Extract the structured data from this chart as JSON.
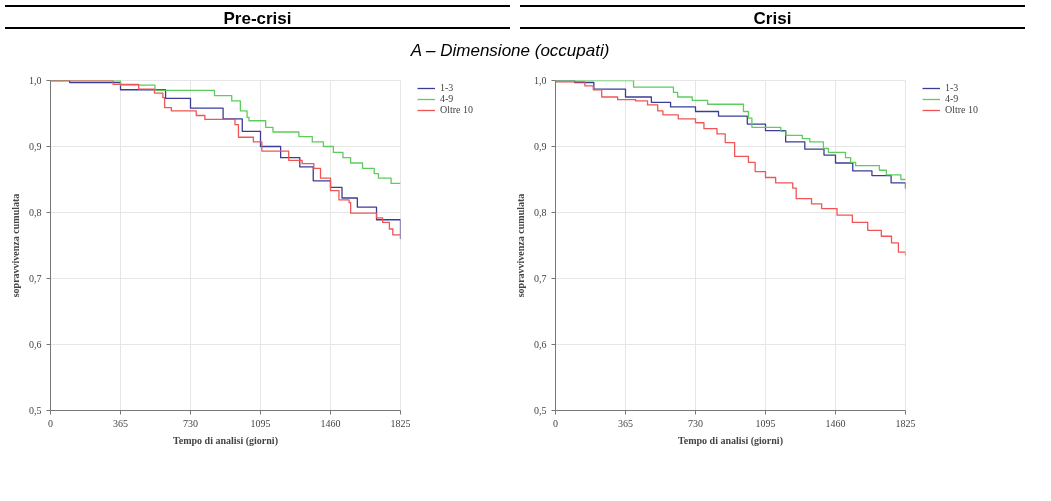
{
  "chart_data": [
    {
      "type": "step",
      "title": "Pre-crisi",
      "subtitle": "A – Dimensione (occupati)",
      "xlabel": "Tempo di analisi (giorni)",
      "ylabel": "sopravvivenza cumulata",
      "xlim": [
        0,
        1825
      ],
      "xticks": [
        0,
        365,
        730,
        1095,
        1460,
        1825
      ],
      "ylim": [
        0.5,
        1.0
      ],
      "yticks": [
        {
          "value": 0.5,
          "label": "0,5"
        },
        {
          "value": 0.6,
          "label": "0,6"
        },
        {
          "value": 0.7,
          "label": "0,7"
        },
        {
          "value": 0.8,
          "label": "0,8"
        },
        {
          "value": 0.9,
          "label": "0,9"
        },
        {
          "value": 1.0,
          "label": "1,0"
        }
      ],
      "grid": true,
      "legend": "right",
      "marker": "none",
      "line_style": "solid",
      "series": [
        {
          "name": "1-3",
          "color": "#3c3c96",
          "x": [
            0,
            100,
            365,
            600,
            730,
            900,
            1000,
            1095,
            1200,
            1300,
            1370,
            1460,
            1520,
            1600,
            1700,
            1825
          ],
          "values": [
            1.0,
            0.997,
            0.986,
            0.973,
            0.958,
            0.942,
            0.923,
            0.9,
            0.883,
            0.869,
            0.848,
            0.838,
            0.822,
            0.808,
            0.789,
            0.76
          ]
        },
        {
          "name": "4-9",
          "color": "#5ccd5c",
          "x": [
            0,
            365,
            545,
            855,
            945,
            990,
            1025,
            1035,
            1122,
            1160,
            1295,
            1365,
            1423,
            1475,
            1525,
            1565,
            1627,
            1688,
            1710,
            1776,
            1825
          ],
          "values": [
            1.0,
            0.993,
            0.985,
            0.977,
            0.969,
            0.954,
            0.944,
            0.939,
            0.929,
            0.922,
            0.915,
            0.907,
            0.9,
            0.891,
            0.883,
            0.875,
            0.867,
            0.859,
            0.852,
            0.844,
            0.844
          ]
        },
        {
          "name": "Oltre 10",
          "color": "#f05555",
          "x": [
            0,
            327,
            460,
            542,
            586,
            595,
            630,
            760,
            805,
            962,
            980,
            1058,
            1102,
            1242,
            1312,
            1373,
            1408,
            1460,
            1504,
            1557,
            1565,
            1700,
            1732,
            1767,
            1785,
            1825
          ],
          "values": [
            1.0,
            0.994,
            0.987,
            0.981,
            0.974,
            0.959,
            0.954,
            0.947,
            0.941,
            0.933,
            0.914,
            0.907,
            0.893,
            0.879,
            0.874,
            0.867,
            0.852,
            0.833,
            0.819,
            0.815,
            0.799,
            0.792,
            0.785,
            0.775,
            0.766,
            0.766
          ]
        }
      ]
    },
    {
      "type": "step",
      "title": "Crisi",
      "xlabel": "Tempo di analisi (giorni)",
      "ylabel": "sopravvivenza cumulata",
      "xlim": [
        0,
        1825
      ],
      "xticks": [
        0,
        365,
        730,
        1095,
        1460,
        1825
      ],
      "ylim": [
        0.5,
        1.0
      ],
      "yticks": [
        {
          "value": 0.5,
          "label": "0,5"
        },
        {
          "value": 0.6,
          "label": "0,6"
        },
        {
          "value": 0.7,
          "label": "0,7"
        },
        {
          "value": 0.8,
          "label": "0,8"
        },
        {
          "value": 0.9,
          "label": "0,9"
        },
        {
          "value": 1.0,
          "label": "1,0"
        }
      ],
      "grid": true,
      "legend": "right",
      "marker": "none",
      "line_style": "solid",
      "series": [
        {
          "name": "1-3",
          "color": "#3c3c96",
          "x": [
            0,
            100,
            200,
            365,
            500,
            600,
            730,
            850,
            1000,
            1095,
            1200,
            1300,
            1400,
            1460,
            1550,
            1650,
            1750,
            1825
          ],
          "values": [
            1.0,
            0.997,
            0.987,
            0.975,
            0.967,
            0.96,
            0.953,
            0.946,
            0.934,
            0.924,
            0.907,
            0.896,
            0.887,
            0.875,
            0.863,
            0.856,
            0.845,
            0.836
          ]
        },
        {
          "name": "4-9",
          "color": "#5ccd5c",
          "x": [
            0,
            407,
            615,
            637,
            713,
            793,
            980,
            1006,
            1024,
            1175,
            1202,
            1287,
            1326,
            1397,
            1423,
            1512,
            1539,
            1565,
            1689,
            1725,
            1801,
            1825
          ],
          "values": [
            1.0,
            0.99,
            0.982,
            0.975,
            0.97,
            0.964,
            0.953,
            0.943,
            0.929,
            0.923,
            0.917,
            0.912,
            0.907,
            0.897,
            0.891,
            0.883,
            0.876,
            0.871,
            0.864,
            0.857,
            0.85,
            0.85
          ]
        },
        {
          "name": "Oltre 10",
          "color": "#f05555",
          "x": [
            0,
            153,
            197,
            241,
            324,
            418,
            480,
            533,
            560,
            640,
            730,
            774,
            842,
            885,
            934,
            1006,
            1041,
            1095,
            1148,
            1237,
            1255,
            1335,
            1388,
            1468,
            1548,
            1628,
            1699,
            1752,
            1788,
            1825
          ],
          "values": [
            0.998,
            0.992,
            0.986,
            0.975,
            0.971,
            0.969,
            0.963,
            0.954,
            0.948,
            0.942,
            0.936,
            0.927,
            0.919,
            0.906,
            0.885,
            0.876,
            0.862,
            0.853,
            0.845,
            0.837,
            0.821,
            0.813,
            0.806,
            0.796,
            0.785,
            0.773,
            0.764,
            0.754,
            0.74,
            0.735
          ]
        }
      ]
    }
  ]
}
